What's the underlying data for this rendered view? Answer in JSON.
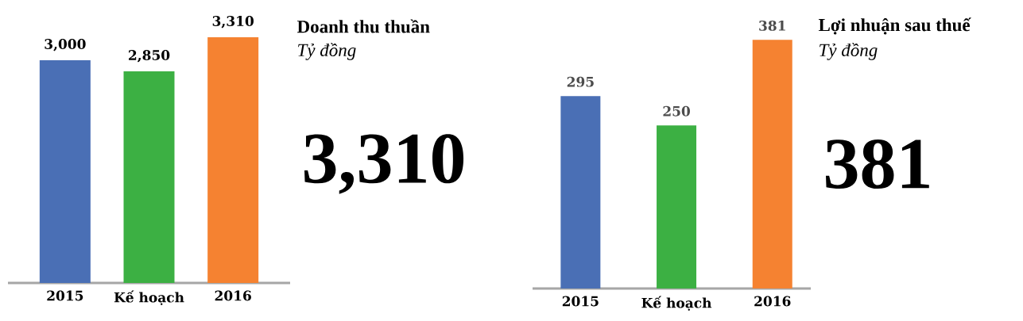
{
  "chart_data": [
    {
      "type": "bar",
      "title": "Doanh thu thuần",
      "subtitle": "Tỷ đồng",
      "categories": [
        "2015",
        "Kế hoạch",
        "2016"
      ],
      "values": [
        3000,
        2850,
        3310
      ],
      "colors": [
        "#4a6fb5",
        "#3cb043",
        "#f58231"
      ],
      "value_labels": [
        "3,000",
        "2,850",
        "3,310"
      ],
      "annotations": [
        "3,310"
      ]
    },
    {
      "type": "bar",
      "title": "Lợi nhuận sau thuế",
      "subtitle": "Tỷ đồng",
      "categories": [
        "2015",
        "Kế hoạch",
        "2016"
      ],
      "values": [
        295,
        250,
        381
      ],
      "colors": [
        "#4a6fb5",
        "#3cb043",
        "#f58231"
      ],
      "value_labels": [
        "295",
        "250",
        "381"
      ],
      "annotations": [
        "381"
      ]
    }
  ]
}
